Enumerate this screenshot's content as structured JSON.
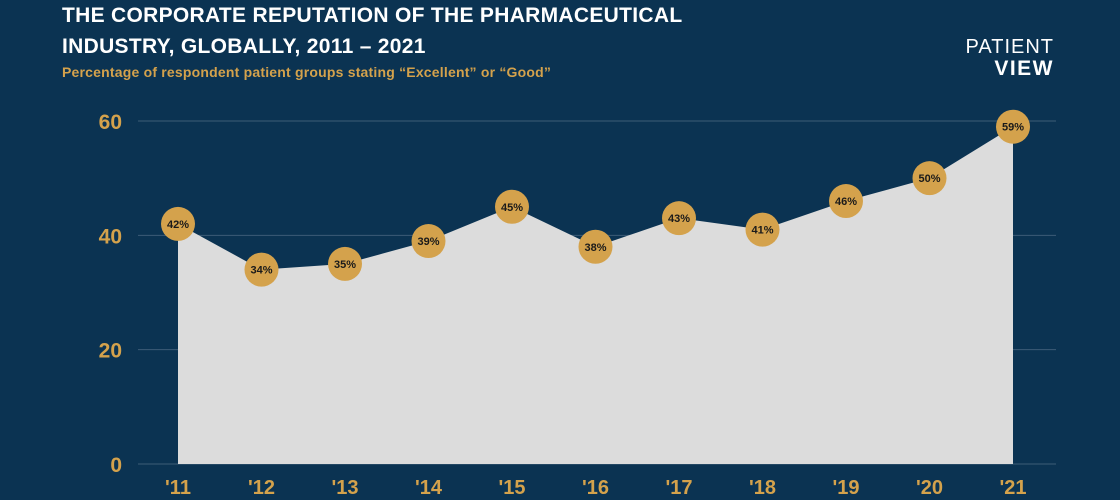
{
  "header": {
    "title": "THE CORPORATE REPUTATION OF THE PHARMACEUTICAL INDUSTRY, GLOBALLY, 2011 – 2021",
    "subtitle": "Percentage of respondent patient groups stating “Excellent” or “Good”"
  },
  "brand": {
    "line1": "PATIENT",
    "line2": "VIEW"
  },
  "colors": {
    "background": "#0b3352",
    "accent": "#d4a24c",
    "area_fill": "#dcdcdc",
    "gridline": "#3d5c77"
  },
  "chart_data": {
    "type": "area",
    "title": "THE CORPORATE REPUTATION OF THE PHARMACEUTICAL INDUSTRY, GLOBALLY, 2011 – 2021",
    "subtitle": "Percentage of respondent patient groups stating “Excellent” or “Good”",
    "categories": [
      "'11",
      "'12",
      "'13",
      "'14",
      "'15",
      "'16",
      "'17",
      "'18",
      "'19",
      "'20",
      "'21"
    ],
    "values": [
      42,
      34,
      35,
      39,
      45,
      38,
      43,
      41,
      46,
      50,
      59
    ],
    "data_labels": [
      "42%",
      "34%",
      "35%",
      "39%",
      "45%",
      "38%",
      "43%",
      "41%",
      "46%",
      "50%",
      "59%"
    ],
    "yticks": [
      0,
      20,
      40,
      60
    ],
    "ylim": [
      0,
      60
    ],
    "grid": true,
    "legend": "none"
  }
}
